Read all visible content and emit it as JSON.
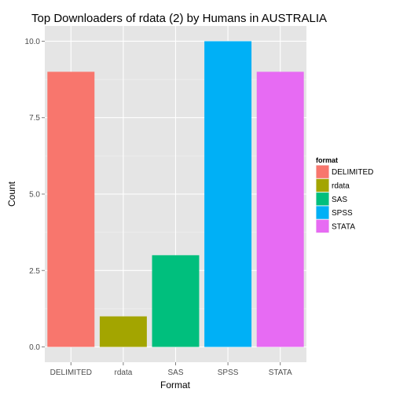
{
  "chart_data": {
    "type": "bar",
    "title": "Top Downloaders of rdata (2) by Humans in AUSTRALIA",
    "xlabel": "Format",
    "ylabel": "Count",
    "categories": [
      "DELIMITED",
      "rdata",
      "SAS",
      "SPSS",
      "STATA"
    ],
    "values": [
      9,
      1,
      3,
      10,
      9
    ],
    "ylim": [
      -0.5,
      10.5
    ],
    "yticks": [
      0,
      2.5,
      5,
      7.5,
      10
    ],
    "ytick_labels": [
      "0.0",
      "2.5",
      "5.0",
      "7.5",
      "10.0"
    ],
    "colors": [
      "#f8766d",
      "#a3a500",
      "#00bf7d",
      "#00b0f6",
      "#e76bf3"
    ],
    "grid": true,
    "panel_background": "#e5e5e5",
    "legend": {
      "title": "format",
      "position": "right",
      "entries": [
        "DELIMITED",
        "rdata",
        "SAS",
        "SPSS",
        "STATA"
      ]
    }
  }
}
